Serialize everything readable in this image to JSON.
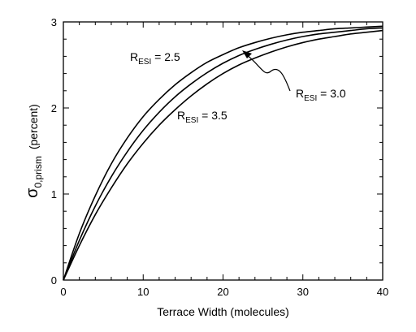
{
  "chart_data": {
    "type": "line",
    "xlabel": "Terrace Width (molecules)",
    "ylabel": {
      "symbol": "σ",
      "subscript": "0,prism",
      "unit": "(percent)"
    },
    "xlim": [
      0,
      40
    ],
    "ylim": [
      0,
      3
    ],
    "x_ticks": [
      "0",
      "10",
      "20",
      "30",
      "40"
    ],
    "y_ticks": [
      "0",
      "1",
      "2",
      "3"
    ],
    "grid": false,
    "legend": "none",
    "series": [
      {
        "label_main": "R",
        "label_sub": "ESI",
        "label_value": " = 2.5",
        "x": [
          0,
          2,
          4,
          6,
          8,
          10,
          12,
          14,
          16,
          18,
          20,
          22,
          24,
          26,
          28,
          30,
          32,
          34,
          36,
          38,
          40
        ],
        "y": [
          0,
          0.54,
          0.98,
          1.35,
          1.65,
          1.9,
          2.1,
          2.27,
          2.41,
          2.53,
          2.62,
          2.7,
          2.76,
          2.81,
          2.85,
          2.88,
          2.9,
          2.92,
          2.93,
          2.94,
          2.95
        ]
      },
      {
        "label_main": "R",
        "label_sub": "ESI",
        "label_value": " = 3.0",
        "x": [
          0,
          2,
          4,
          6,
          8,
          10,
          12,
          14,
          16,
          18,
          20,
          22,
          24,
          26,
          28,
          30,
          32,
          34,
          36,
          38,
          40
        ],
        "y": [
          0,
          0.46,
          0.86,
          1.2,
          1.49,
          1.74,
          1.95,
          2.13,
          2.28,
          2.41,
          2.52,
          2.61,
          2.68,
          2.74,
          2.79,
          2.83,
          2.86,
          2.88,
          2.9,
          2.92,
          2.93
        ]
      },
      {
        "label_main": "R",
        "label_sub": "ESI",
        "label_value": " = 3.5",
        "x": [
          0,
          2,
          4,
          6,
          8,
          10,
          12,
          14,
          16,
          18,
          20,
          22,
          24,
          26,
          28,
          30,
          32,
          34,
          36,
          38,
          40
        ],
        "y": [
          0,
          0.4,
          0.76,
          1.07,
          1.35,
          1.59,
          1.8,
          1.98,
          2.14,
          2.28,
          2.4,
          2.5,
          2.58,
          2.65,
          2.71,
          2.76,
          2.8,
          2.83,
          2.86,
          2.88,
          2.9
        ]
      }
    ],
    "colors": {
      "line": "#000000",
      "background": "#ffffff"
    }
  }
}
